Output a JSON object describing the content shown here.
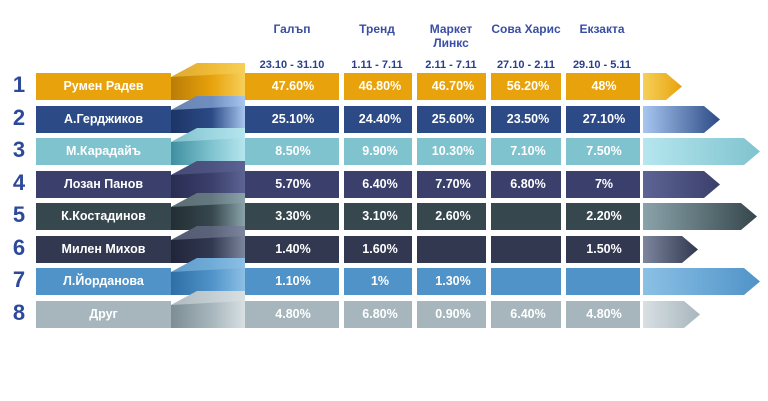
{
  "chart_data": {
    "type": "table",
    "title": "",
    "ranks": [
      "1",
      "2",
      "3",
      "4",
      "5",
      "6",
      "7",
      "8"
    ],
    "pollsters": [
      {
        "name": "Галъп",
        "dates": "23.10 - 31.10"
      },
      {
        "name": "Тренд",
        "dates": "1.11 - 7.11"
      },
      {
        "name": "Маркет Линкс",
        "dates": "2.11 - 7.11"
      },
      {
        "name": "Сова Харис",
        "dates": "27.10 - 2.11"
      },
      {
        "name": "Екзакта",
        "dates": "29.10 - 5.11"
      }
    ],
    "rows": [
      {
        "rank": "1",
        "candidate": "Румен Радев",
        "values": [
          "47.60%",
          "46.80%",
          "46.70%",
          "56.20%",
          "48%"
        ],
        "color": "#e8a20c",
        "dark": "#b97c06",
        "light": "#f6d05a"
      },
      {
        "rank": "2",
        "candidate": "А.Герджиков",
        "values": [
          "25.10%",
          "24.40%",
          "25.60%",
          "23.50%",
          "27.10%"
        ],
        "color": "#2c4a86",
        "dark": "#1d3566",
        "light": "#a7c6ef"
      },
      {
        "rank": "3",
        "candidate": "М.Карадайъ",
        "values": [
          "8.50%",
          "9.90%",
          "10.30%",
          "7.10%",
          "7.50%"
        ],
        "color": "#7fc3cf",
        "dark": "#3f8fa0",
        "light": "#b6e6ee"
      },
      {
        "rank": "4",
        "candidate": "Лозан Панов",
        "values": [
          "5.70%",
          "6.40%",
          "7.70%",
          "6.80%",
          "7%"
        ],
        "color": "#3b3f6b",
        "dark": "#2a2d52",
        "light": "#5d6494"
      },
      {
        "rank": "5",
        "candidate": "К.Костадинов",
        "values": [
          "3.30%",
          "3.10%",
          "2.60%",
          "",
          "2.20%"
        ],
        "color": "#36474d",
        "dark": "#222e33",
        "light": "#8aa3aa"
      },
      {
        "rank": "6",
        "candidate": "Милен Михов",
        "values": [
          "1.40%",
          "1.60%",
          "",
          "",
          "1.50%"
        ],
        "color": "#313850",
        "dark": "#20253a",
        "light": "#7d869e"
      },
      {
        "rank": "7",
        "candidate": "Л.Йорданова",
        "values": [
          "1.10%",
          "1%",
          "1.30%",
          "",
          ""
        ],
        "color": "#4f93c8",
        "dark": "#2e6fa6",
        "light": "#8cc0e5"
      },
      {
        "rank": "8",
        "candidate": "Друг",
        "values": [
          "4.80%",
          "6.80%",
          "0.90%",
          "6.40%",
          "4.80%"
        ],
        "color": "#a7b6bd",
        "dark": "#7d8d94",
        "light": "#d8e0e3"
      }
    ]
  }
}
